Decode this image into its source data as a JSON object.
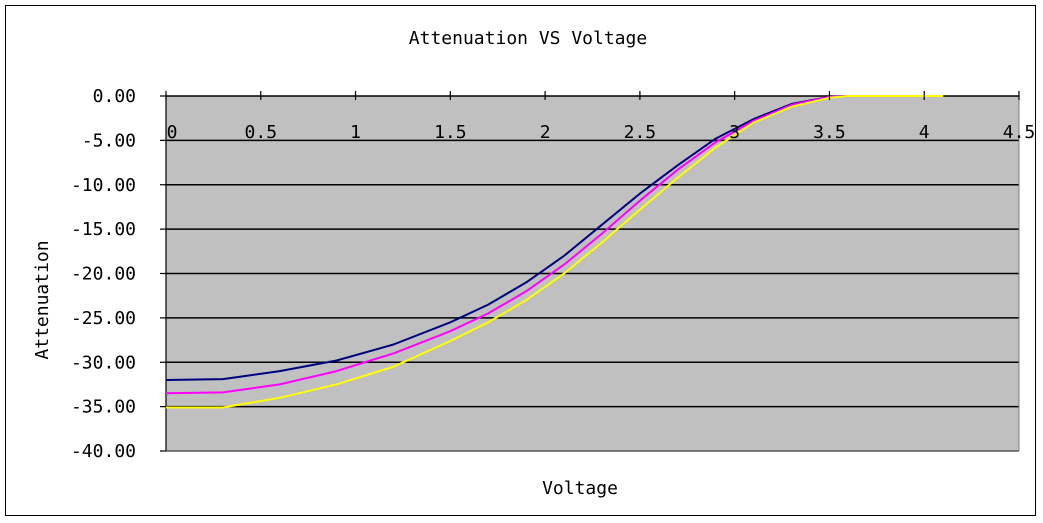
{
  "chart_data": {
    "type": "line",
    "title": "Attenuation VS Voltage",
    "xlabel": "Voltage",
    "ylabel": "Attenuation",
    "xlim": [
      0,
      4.5
    ],
    "ylim": [
      -40,
      0
    ],
    "x_ticks": [
      "0",
      "0.5",
      "1",
      "1.5",
      "2",
      "2.5",
      "3",
      "3.5",
      "4",
      "4.5"
    ],
    "y_ticks": [
      "0.00",
      "-5.00",
      "-10.00",
      "-15.00",
      "-20.00",
      "-25.00",
      "-30.00",
      "-35.00",
      "-40.00"
    ],
    "grid": "horizontal",
    "plot_background": "#c0c0c0",
    "series": [
      {
        "color": "#000080",
        "x": [
          0,
          0.3,
          0.6,
          0.9,
          1.2,
          1.5,
          1.7,
          1.9,
          2.1,
          2.3,
          2.5,
          2.7,
          2.9,
          3.1,
          3.3,
          3.5,
          3.6
        ],
        "y": [
          -32,
          -31.9,
          -31,
          -29.8,
          -28,
          -25.5,
          -23.5,
          -21,
          -18,
          -14.5,
          -11,
          -7.8,
          -4.8,
          -2.6,
          -0.9,
          -0.1,
          0
        ]
      },
      {
        "color": "#ff00ff",
        "x": [
          0,
          0.3,
          0.6,
          0.9,
          1.2,
          1.5,
          1.7,
          1.9,
          2.1,
          2.3,
          2.5,
          2.7,
          2.9,
          3.1,
          3.3,
          3.5,
          3.6
        ],
        "y": [
          -33.5,
          -33.4,
          -32.5,
          -31,
          -29,
          -26.5,
          -24.5,
          -22,
          -19,
          -15.5,
          -11.8,
          -8.3,
          -5.2,
          -2.8,
          -1,
          -0.1,
          0
        ]
      },
      {
        "color": "#ffff00",
        "x": [
          0,
          0.3,
          0.6,
          0.9,
          1.2,
          1.5,
          1.7,
          1.9,
          2.1,
          2.3,
          2.5,
          2.7,
          2.9,
          3.1,
          3.3,
          3.5,
          3.6,
          4.1
        ],
        "y": [
          -35.1,
          -35.1,
          -34,
          -32.5,
          -30.5,
          -27.6,
          -25.5,
          -23,
          -20,
          -16.5,
          -12.8,
          -9.2,
          -5.8,
          -3,
          -1.2,
          -0.2,
          0,
          0
        ]
      }
    ]
  }
}
